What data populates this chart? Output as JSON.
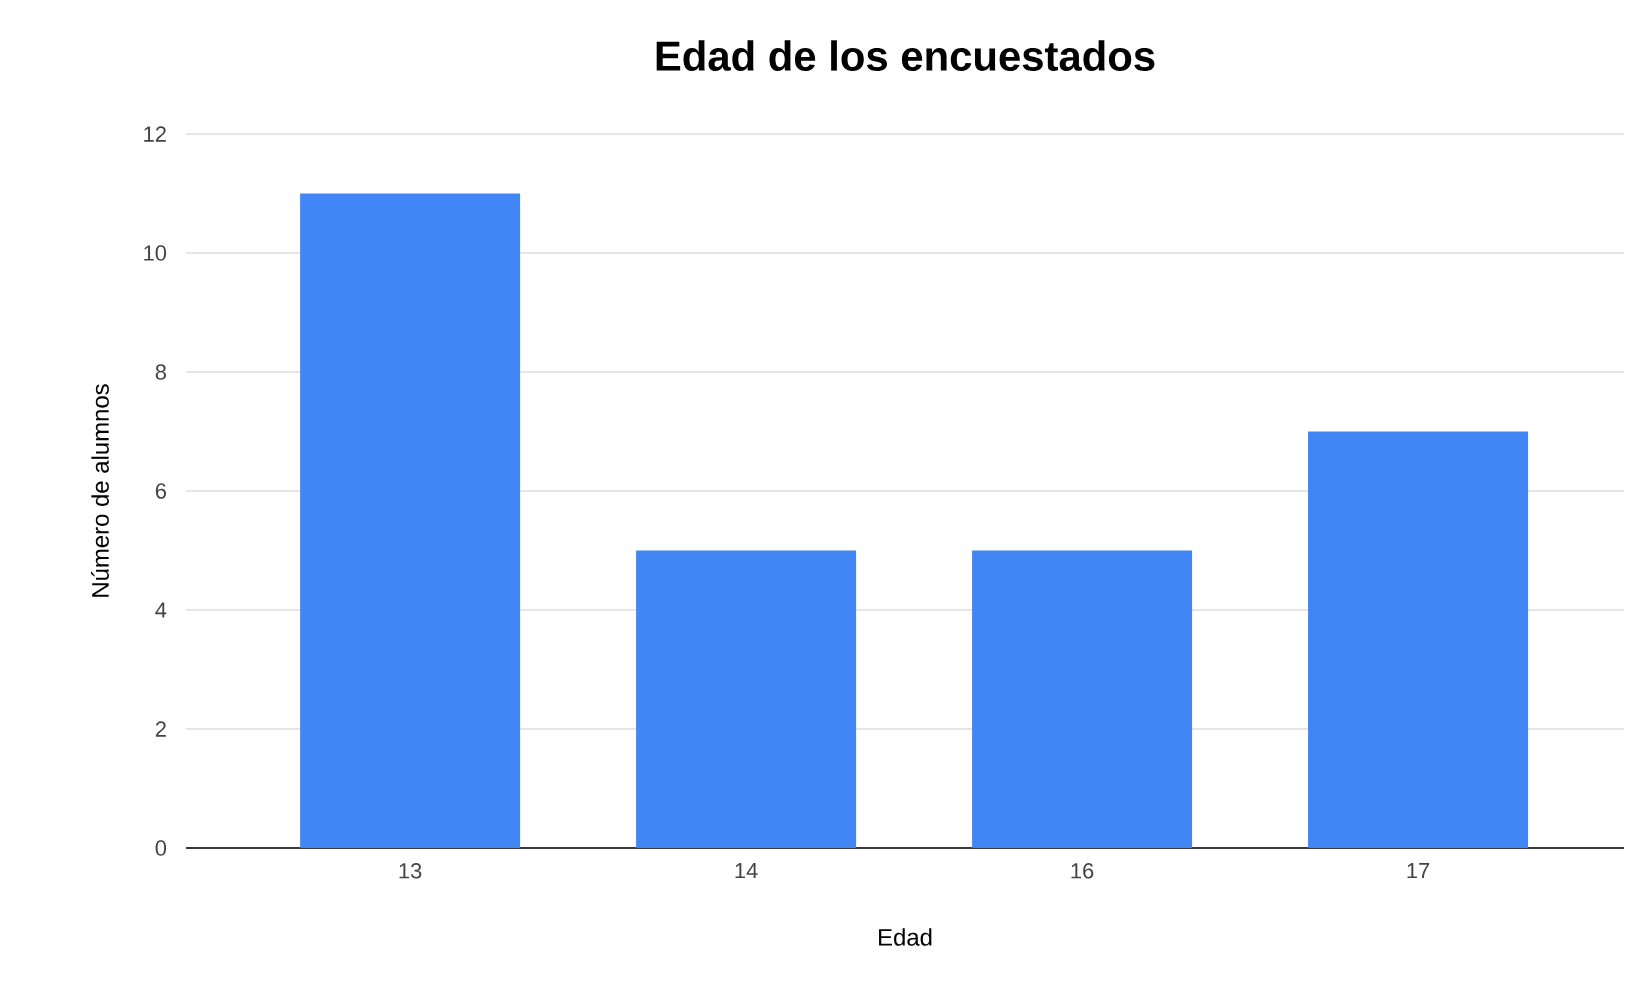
{
  "chart_data": {
    "type": "bar",
    "title": "Edad de los encuestados",
    "xlabel": "Edad",
    "ylabel": "Número de alumnos",
    "categories": [
      "13",
      "14",
      "16",
      "17"
    ],
    "values": [
      11,
      5,
      5,
      7
    ],
    "color": "#4285f4",
    "ylim": [
      0,
      12
    ],
    "yticks": [
      0,
      2,
      4,
      6,
      8,
      10,
      12
    ],
    "grid": "y"
  }
}
